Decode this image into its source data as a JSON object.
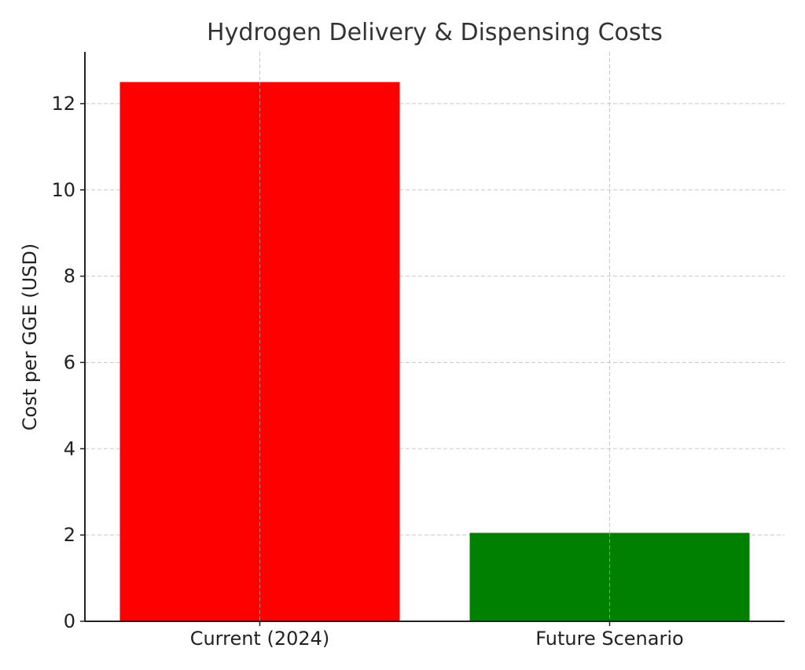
{
  "chart_data": {
    "type": "bar",
    "title": "Hydrogen Delivery & Dispensing Costs",
    "xlabel": "",
    "ylabel": "Cost per GGE (USD)",
    "categories": [
      "Current (2024)",
      "Future Scenario"
    ],
    "values": [
      12.5,
      2.05
    ],
    "colors": [
      "#ff0000",
      "#008000"
    ],
    "ylim": [
      0,
      13.2
    ],
    "yticks": [
      0,
      2,
      4,
      6,
      8,
      10,
      12
    ],
    "grid": true
  }
}
